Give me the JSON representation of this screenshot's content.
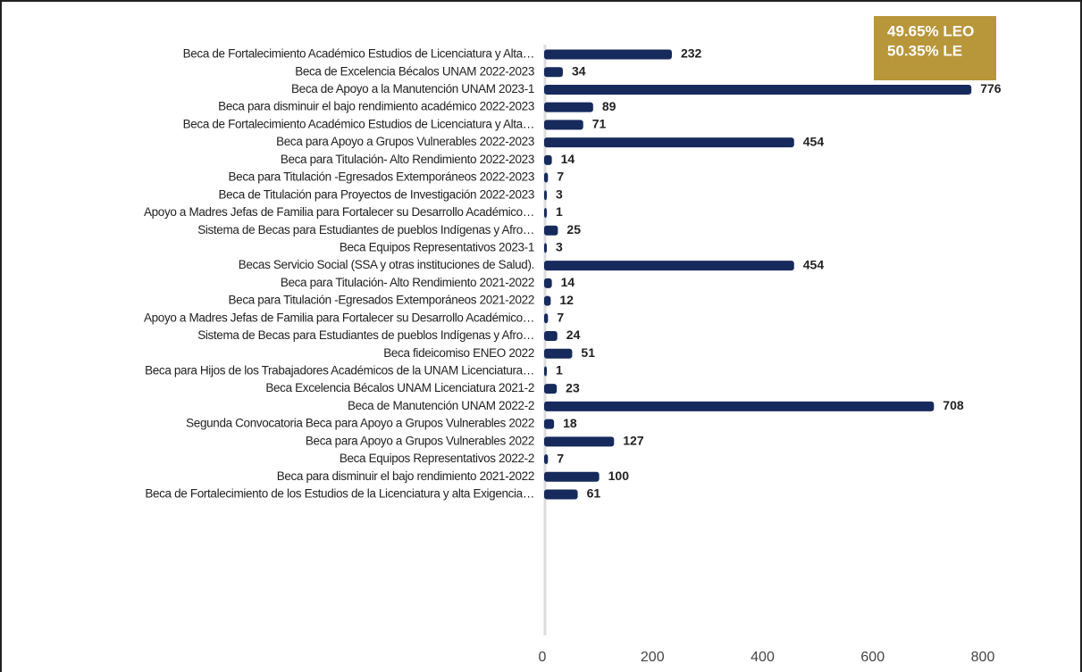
{
  "chart_data": {
    "type": "bar",
    "orientation": "horizontal",
    "categories": [
      "Beca de Fortalecimiento Académico Estudios de Licenciatura y Alta…",
      "Beca de Excelencia Bécalos UNAM 2022-2023",
      "Beca de Apoyo a la Manutención UNAM 2023-1",
      "Beca para disminuir el bajo rendimiento académico 2022-2023",
      "Beca de Fortalecimiento Académico Estudios de Licenciatura y Alta…",
      "Beca para Apoyo a Grupos Vulnerables 2022-2023",
      "Beca para Titulación- Alto Rendimiento 2022-2023",
      "Beca para Titulación -Egresados Extemporáneos 2022-2023",
      "Beca de Titulación para Proyectos de Investigación 2022-2023",
      "Apoyo a Madres Jefas de Familia para Fortalecer su Desarrollo Académico…",
      "Sistema de Becas para Estudiantes de pueblos Indígenas y Afro…",
      "Beca Equipos Representativos 2023-1",
      "Becas Servicio Social (SSA y otras instituciones de Salud).",
      "Beca para Titulación- Alto Rendimiento 2021-2022",
      "Beca para Titulación -Egresados Extemporáneos 2021-2022",
      "Apoyo a Madres Jefas de Familia para Fortalecer su Desarrollo Académico…",
      "Sistema de Becas para Estudiantes de pueblos Indígenas y Afro…",
      "Beca fideicomiso ENEO 2022",
      "Beca para Hijos de los Trabajadores Académicos de la UNAM Licenciatura…",
      "Beca Excelencia Bécalos UNAM Licenciatura 2021-2",
      "Beca de Manutención UNAM 2022-2",
      "Segunda Convocatoria Beca para Apoyo a Grupos Vulnerables 2022",
      "Beca para Apoyo a Grupos Vulnerables 2022",
      "Beca Equipos Representativos 2022-2",
      "Beca para disminuir el bajo rendimiento 2021-2022",
      "Beca de Fortalecimiento de los Estudios de la Licenciatura y alta Exigencia…"
    ],
    "values": [
      232,
      34,
      776,
      89,
      71,
      454,
      14,
      7,
      3,
      1,
      25,
      3,
      454,
      14,
      12,
      7,
      24,
      51,
      1,
      23,
      708,
      18,
      127,
      7,
      100,
      61
    ],
    "color": "#172a5c",
    "xlim": [
      0,
      800
    ],
    "xticks": [
      0,
      200,
      400,
      600,
      800
    ],
    "grid": false,
    "annotations": [
      "49.65%  LEO",
      "50.35%  LE"
    ],
    "annotation_color": "#b8963a"
  }
}
